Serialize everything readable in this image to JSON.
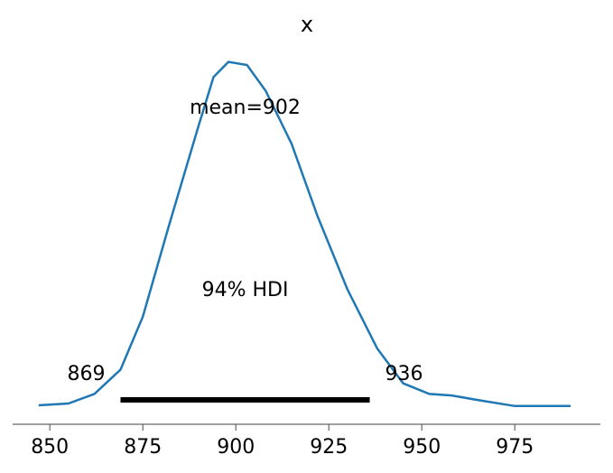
{
  "chart_data": {
    "type": "density",
    "title": "x",
    "x": [
      847,
      855,
      862,
      869,
      875,
      882,
      890,
      894,
      898,
      903,
      908,
      915,
      922,
      930,
      938,
      945,
      952,
      958,
      965,
      975,
      990
    ],
    "values": [
      5e-05,
      0.00017,
      0.0008,
      0.0024,
      0.0059,
      0.0119,
      0.0185,
      0.0217,
      0.0227,
      0.0225,
      0.0208,
      0.0173,
      0.0125,
      0.0077,
      0.0038,
      0.0015,
      0.0008,
      0.0007,
      0.0004,
      0,
      0
    ],
    "color": "#1f77b4",
    "mean": {
      "value": 902,
      "label": "mean=902"
    },
    "hdi": [
      869,
      936
    ],
    "hdi_prob": {
      "value": 94,
      "label": "94% HDI"
    },
    "xlim": [
      840,
      998
    ],
    "ylim": [
      -0.0012,
      0.025
    ],
    "xticks": [
      850,
      875,
      900,
      925,
      950,
      975
    ]
  }
}
